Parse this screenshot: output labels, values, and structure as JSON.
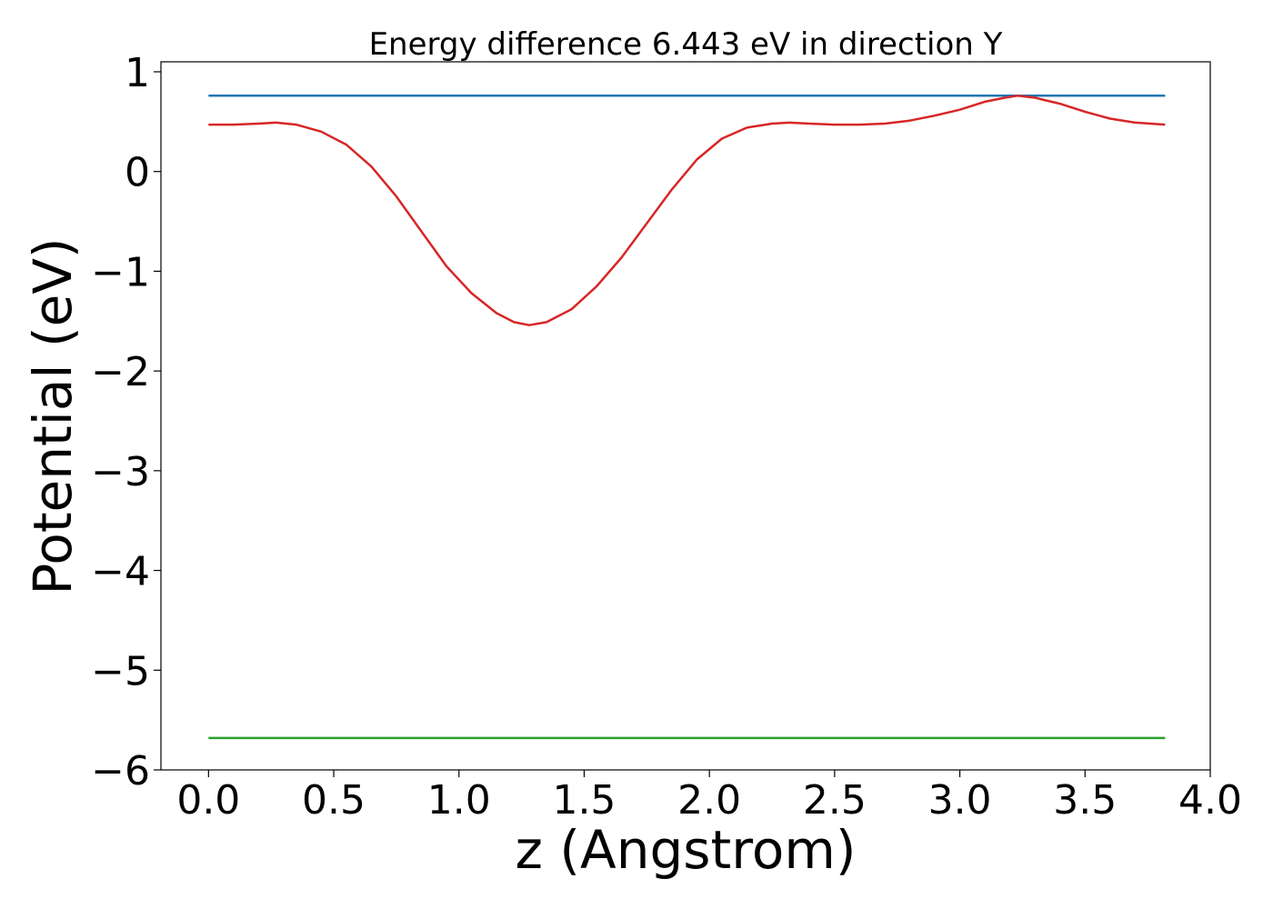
{
  "chart_data": {
    "type": "line",
    "title": "Energy difference 6.443 eV in direction Y",
    "xlabel": "z (Angstrom)",
    "ylabel": "Potential (eV)",
    "xlim": [
      -0.19,
      4.0
    ],
    "ylim": [
      -6.0,
      1.1
    ],
    "xticks": [
      {
        "value": 0.0,
        "label": "0.0"
      },
      {
        "value": 0.5,
        "label": "0.5"
      },
      {
        "value": 1.0,
        "label": "1.0"
      },
      {
        "value": 1.5,
        "label": "1.5"
      },
      {
        "value": 2.0,
        "label": "2.0"
      },
      {
        "value": 2.5,
        "label": "2.5"
      },
      {
        "value": 3.0,
        "label": "3.0"
      },
      {
        "value": 3.5,
        "label": "3.5"
      },
      {
        "value": 4.0,
        "label": "4.0"
      }
    ],
    "yticks": [
      {
        "value": 1,
        "label": "1"
      },
      {
        "value": 0,
        "label": "0"
      },
      {
        "value": -1,
        "label": "−1"
      },
      {
        "value": -2,
        "label": "−2"
      },
      {
        "value": -3,
        "label": "−3"
      },
      {
        "value": -4,
        "label": "−4"
      },
      {
        "value": -5,
        "label": "−5"
      },
      {
        "value": -6,
        "label": "−6"
      }
    ],
    "grid": false,
    "legend": "none",
    "series": [
      {
        "color": "#1f77b4",
        "x": [
          0.0,
          3.82
        ],
        "y": [
          0.76,
          0.76
        ]
      },
      {
        "color": "#2ca02c",
        "x": [
          0.0,
          3.82
        ],
        "y": [
          -5.68,
          -5.68
        ]
      },
      {
        "color": "#d62728",
        "x": [
          0.0,
          0.1,
          0.2,
          0.27,
          0.35,
          0.45,
          0.55,
          0.65,
          0.75,
          0.85,
          0.95,
          1.05,
          1.15,
          1.22,
          1.28,
          1.35,
          1.45,
          1.55,
          1.65,
          1.75,
          1.85,
          1.95,
          2.05,
          2.15,
          2.25,
          2.32,
          2.4,
          2.5,
          2.6,
          2.7,
          2.8,
          2.9,
          3.0,
          3.1,
          3.18,
          3.23,
          3.3,
          3.4,
          3.5,
          3.6,
          3.7,
          3.82
        ],
        "y": [
          0.47,
          0.47,
          0.48,
          0.49,
          0.47,
          0.4,
          0.27,
          0.05,
          -0.25,
          -0.6,
          -0.95,
          -1.22,
          -1.42,
          -1.51,
          -1.54,
          -1.51,
          -1.38,
          -1.15,
          -0.86,
          -0.52,
          -0.18,
          0.12,
          0.33,
          0.44,
          0.48,
          0.49,
          0.48,
          0.47,
          0.47,
          0.48,
          0.51,
          0.56,
          0.62,
          0.7,
          0.74,
          0.76,
          0.74,
          0.68,
          0.6,
          0.53,
          0.49,
          0.47
        ]
      }
    ]
  }
}
